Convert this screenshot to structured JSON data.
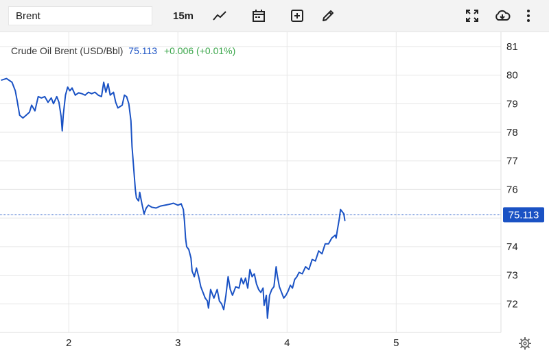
{
  "toolbar": {
    "symbol_value": "Brent",
    "interval_label": "15m",
    "icons": [
      "chart-type-icon",
      "calendar-icon",
      "add-indicator-icon",
      "draw-icon",
      "fullscreen-icon",
      "download-icon",
      "more-icon"
    ]
  },
  "legend": {
    "name": "Crude Oil Brent (USD/Bbl)",
    "price": "75.113",
    "change": "+0.006 (+0.01%)"
  },
  "colors": {
    "line": "#1a52c4",
    "positive": "#3aa64a",
    "grid": "#e6e6e6",
    "price_tag": "#1a52c4"
  },
  "chart_data": {
    "type": "line",
    "title": "Crude Oil Brent (USD/Bbl)",
    "x_ticks": [
      {
        "value": 2,
        "label": "2"
      },
      {
        "value": 3,
        "label": "3"
      },
      {
        "value": 4,
        "label": "4"
      },
      {
        "value": 5,
        "label": "5"
      }
    ],
    "xlim": [
      1.37,
      5.96
    ],
    "y_ticks": [
      "72",
      "73",
      "74",
      "75",
      "76",
      "77",
      "78",
      "79",
      "80",
      "81"
    ],
    "ylim": [
      71.0,
      81.5
    ],
    "grid": true,
    "axis_position": "right",
    "last_price": 75.113,
    "last_price_label": "75.113",
    "series": [
      {
        "points": [
          [
            1.38,
            79.82
          ],
          [
            1.43,
            79.88
          ],
          [
            1.48,
            79.75
          ],
          [
            1.51,
            79.45
          ],
          [
            1.53,
            79.05
          ],
          [
            1.55,
            78.6
          ],
          [
            1.58,
            78.5
          ],
          [
            1.61,
            78.6
          ],
          [
            1.64,
            78.7
          ],
          [
            1.66,
            78.95
          ],
          [
            1.69,
            78.75
          ],
          [
            1.72,
            79.25
          ],
          [
            1.75,
            79.2
          ],
          [
            1.78,
            79.25
          ],
          [
            1.81,
            79.05
          ],
          [
            1.84,
            79.2
          ],
          [
            1.86,
            79.0
          ],
          [
            1.89,
            79.25
          ],
          [
            1.91,
            79.05
          ],
          [
            1.93,
            78.55
          ],
          [
            1.94,
            78.05
          ],
          [
            1.95,
            78.6
          ],
          [
            1.97,
            79.3
          ],
          [
            1.99,
            79.58
          ],
          [
            2.01,
            79.45
          ],
          [
            2.03,
            79.55
          ],
          [
            2.06,
            79.3
          ],
          [
            2.09,
            79.38
          ],
          [
            2.12,
            79.35
          ],
          [
            2.15,
            79.3
          ],
          [
            2.18,
            79.4
          ],
          [
            2.21,
            79.35
          ],
          [
            2.24,
            79.4
          ],
          [
            2.27,
            79.3
          ],
          [
            2.3,
            79.25
          ],
          [
            2.32,
            79.75
          ],
          [
            2.34,
            79.4
          ],
          [
            2.36,
            79.7
          ],
          [
            2.38,
            79.3
          ],
          [
            2.41,
            79.4
          ],
          [
            2.43,
            79.05
          ],
          [
            2.45,
            78.85
          ],
          [
            2.47,
            78.9
          ],
          [
            2.49,
            78.95
          ],
          [
            2.51,
            79.3
          ],
          [
            2.53,
            79.25
          ],
          [
            2.55,
            79.0
          ],
          [
            2.57,
            78.4
          ],
          [
            2.58,
            77.5
          ],
          [
            2.59,
            77.0
          ],
          [
            2.6,
            76.5
          ],
          [
            2.61,
            76.0
          ],
          [
            2.62,
            75.7
          ],
          [
            2.64,
            75.6
          ],
          [
            2.65,
            75.9
          ],
          [
            2.67,
            75.5
          ],
          [
            2.69,
            75.15
          ],
          [
            2.71,
            75.35
          ],
          [
            2.73,
            75.45
          ],
          [
            2.76,
            75.38
          ],
          [
            2.8,
            75.35
          ],
          [
            2.84,
            75.42
          ],
          [
            2.88,
            75.45
          ],
          [
            2.92,
            75.48
          ],
          [
            2.96,
            75.52
          ],
          [
            3.0,
            75.45
          ],
          [
            3.03,
            75.5
          ],
          [
            3.05,
            75.3
          ],
          [
            3.06,
            74.9
          ],
          [
            3.07,
            74.3
          ],
          [
            3.08,
            74.0
          ],
          [
            3.1,
            73.9
          ],
          [
            3.12,
            73.6
          ],
          [
            3.13,
            73.15
          ],
          [
            3.15,
            72.95
          ],
          [
            3.17,
            73.25
          ],
          [
            3.19,
            72.95
          ],
          [
            3.21,
            72.6
          ],
          [
            3.23,
            72.4
          ],
          [
            3.25,
            72.2
          ],
          [
            3.27,
            72.1
          ],
          [
            3.28,
            71.85
          ],
          [
            3.3,
            72.5
          ],
          [
            3.33,
            72.2
          ],
          [
            3.36,
            72.5
          ],
          [
            3.38,
            72.1
          ],
          [
            3.4,
            72.0
          ],
          [
            3.42,
            71.8
          ],
          [
            3.44,
            72.3
          ],
          [
            3.46,
            72.95
          ],
          [
            3.48,
            72.5
          ],
          [
            3.5,
            72.3
          ],
          [
            3.53,
            72.6
          ],
          [
            3.56,
            72.55
          ],
          [
            3.58,
            72.9
          ],
          [
            3.6,
            72.7
          ],
          [
            3.62,
            72.9
          ],
          [
            3.64,
            72.55
          ],
          [
            3.66,
            73.2
          ],
          [
            3.68,
            72.95
          ],
          [
            3.7,
            73.05
          ],
          [
            3.72,
            72.7
          ],
          [
            3.74,
            72.5
          ],
          [
            3.76,
            72.4
          ],
          [
            3.78,
            72.55
          ],
          [
            3.79,
            71.95
          ],
          [
            3.81,
            72.3
          ],
          [
            3.82,
            71.5
          ],
          [
            3.84,
            72.3
          ],
          [
            3.86,
            72.5
          ],
          [
            3.88,
            72.6
          ],
          [
            3.9,
            73.3
          ],
          [
            3.91,
            73.0
          ],
          [
            3.93,
            72.6
          ],
          [
            3.95,
            72.4
          ],
          [
            3.97,
            72.2
          ],
          [
            3.99,
            72.3
          ],
          [
            4.01,
            72.45
          ],
          [
            4.03,
            72.65
          ],
          [
            4.05,
            72.55
          ],
          [
            4.07,
            72.85
          ],
          [
            4.09,
            72.95
          ],
          [
            4.11,
            73.1
          ],
          [
            4.14,
            73.05
          ],
          [
            4.17,
            73.3
          ],
          [
            4.2,
            73.2
          ],
          [
            4.23,
            73.55
          ],
          [
            4.26,
            73.5
          ],
          [
            4.29,
            73.85
          ],
          [
            4.32,
            73.75
          ],
          [
            4.35,
            74.1
          ],
          [
            4.38,
            74.1
          ],
          [
            4.41,
            74.3
          ],
          [
            4.44,
            74.4
          ],
          [
            4.45,
            74.3
          ],
          [
            4.46,
            74.55
          ],
          [
            4.48,
            75.0
          ],
          [
            4.49,
            75.3
          ],
          [
            4.5,
            75.25
          ],
          [
            4.52,
            75.15
          ],
          [
            4.53,
            74.9
          ]
        ]
      }
    ]
  }
}
